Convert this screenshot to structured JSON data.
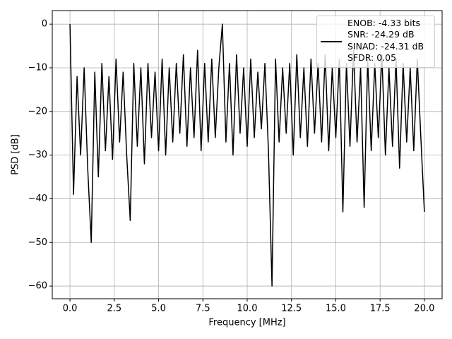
{
  "chart_data": {
    "type": "line",
    "xlabel": "Frequency [MHz]",
    "ylabel": "PSD [dB]",
    "x": [
      0.0,
      0.2,
      0.4,
      0.6,
      0.8,
      1.0,
      1.2,
      1.4,
      1.6,
      1.8,
      2.0,
      2.2,
      2.4,
      2.6,
      2.8,
      3.0,
      3.2,
      3.4,
      3.6,
      3.8,
      4.0,
      4.2,
      4.4,
      4.6,
      4.8,
      5.0,
      5.2,
      5.4,
      5.6,
      5.8,
      6.0,
      6.2,
      6.4,
      6.6,
      6.8,
      7.0,
      7.2,
      7.4,
      7.6,
      7.8,
      8.0,
      8.2,
      8.4,
      8.6,
      8.8,
      9.0,
      9.2,
      9.4,
      9.6,
      9.8,
      10.0,
      10.2,
      10.4,
      10.6,
      10.8,
      11.0,
      11.2,
      11.4,
      11.6,
      11.8,
      12.0,
      12.2,
      12.4,
      12.6,
      12.8,
      13.0,
      13.2,
      13.4,
      13.6,
      13.8,
      14.0,
      14.2,
      14.4,
      14.6,
      14.8,
      15.0,
      15.2,
      15.4,
      15.6,
      15.8,
      16.0,
      16.2,
      16.4,
      16.6,
      16.8,
      17.0,
      17.2,
      17.4,
      17.6,
      17.8,
      18.0,
      18.2,
      18.4,
      18.6,
      18.8,
      19.0,
      19.2,
      19.4,
      19.6,
      19.8,
      20.0
    ],
    "series": [
      {
        "name": "ENOB: -4.33 bits\nSNR: -24.29 dB\nSINAD: -24.31 dB\nSFDR: 0.05",
        "color": "#000000",
        "values": [
          0,
          -39,
          -12,
          -30,
          -10,
          -33,
          -50,
          -11,
          -35,
          -9,
          -29,
          -12,
          -31,
          -8,
          -27,
          -11,
          -30,
          -45,
          -9,
          -28,
          -10,
          -32,
          -9,
          -26,
          -11,
          -29,
          -8,
          -30,
          -10,
          -27,
          -9,
          -25,
          -7,
          -28,
          -10,
          -26,
          -6,
          -29,
          -9,
          -27,
          -8,
          -26,
          -10,
          0,
          -27,
          -9,
          -30,
          -7,
          -25,
          -10,
          -28,
          -8,
          -26,
          -11,
          -24,
          -9,
          -29,
          -60,
          -8,
          -27,
          -10,
          -25,
          -9,
          -30,
          -7,
          -26,
          -10,
          -28,
          -8,
          -25,
          -9,
          -27,
          -7,
          -29,
          -10,
          -26,
          -8,
          -43,
          -9,
          -28,
          -6,
          -27,
          -10,
          -42,
          -8,
          -29,
          -9,
          -26,
          -7,
          -30,
          -10,
          -28,
          -8,
          -33,
          -9,
          -27,
          -10,
          -29,
          -8,
          -26,
          -43
        ]
      }
    ],
    "xlim": [
      -1,
      21
    ],
    "ylim": [
      -62.9,
      3.1
    ],
    "xticks": [
      {
        "value": 0,
        "label": "0.0"
      },
      2.5,
      {
        "value": 5,
        "label": "5.0"
      },
      7.5,
      {
        "value": 10,
        "label": "10.0"
      },
      12.5,
      {
        "value": 15,
        "label": "15.0"
      },
      17.5,
      {
        "value": 20,
        "label": "20.0"
      }
    ],
    "yticks": [
      {
        "value": -60,
        "label": "−60"
      },
      {
        "value": -50,
        "label": "−50"
      },
      {
        "value": -40,
        "label": "−40"
      },
      {
        "value": -30,
        "label": "−30"
      },
      {
        "value": -20,
        "label": "−20"
      },
      {
        "value": -10,
        "label": "−10"
      },
      0
    ],
    "grid": true,
    "legend": "upper right"
  }
}
